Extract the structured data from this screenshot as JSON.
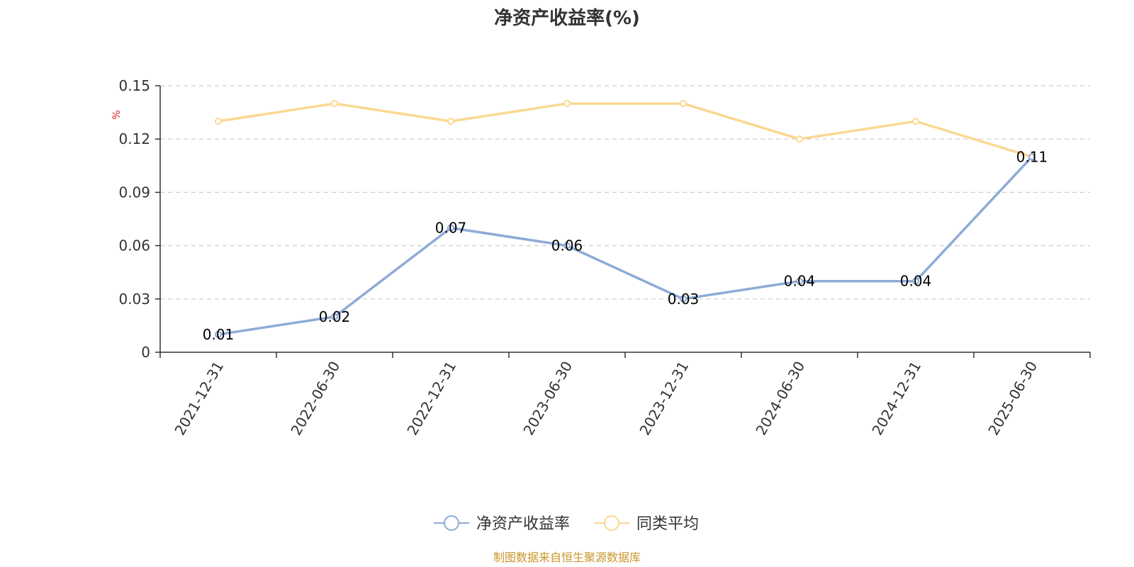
{
  "chart_data": {
    "type": "line",
    "title": "净资产收益率(%)",
    "ylabel": "%",
    "ylim": [
      0,
      0.15
    ],
    "yticks": [
      "0",
      "0.03",
      "0.06",
      "0.09",
      "0.12",
      "0.15"
    ],
    "x": [
      "2021-12-31",
      "2022-06-30",
      "2022-12-31",
      "2023-06-30",
      "2023-12-31",
      "2024-06-30",
      "2024-12-31",
      "2025-06-30"
    ],
    "series": [
      {
        "name": "净资产收益率",
        "color": "#8eabd6",
        "values": [
          0.01,
          0.02,
          0.07,
          0.06,
          0.03,
          0.04,
          0.04,
          0.11
        ],
        "labels": [
          "0.01",
          "0.02",
          "0.07",
          "0.06",
          "0.03",
          "0.04",
          "0.04",
          "0.11"
        ]
      },
      {
        "name": "同类平均",
        "color": "#fad890",
        "values": [
          0.13,
          0.14,
          0.13,
          0.14,
          0.14,
          0.12,
          0.13,
          0.11
        ]
      }
    ],
    "grid": true,
    "legend": "bottom-center"
  },
  "source": "制图数据来自恒生聚源数据库"
}
